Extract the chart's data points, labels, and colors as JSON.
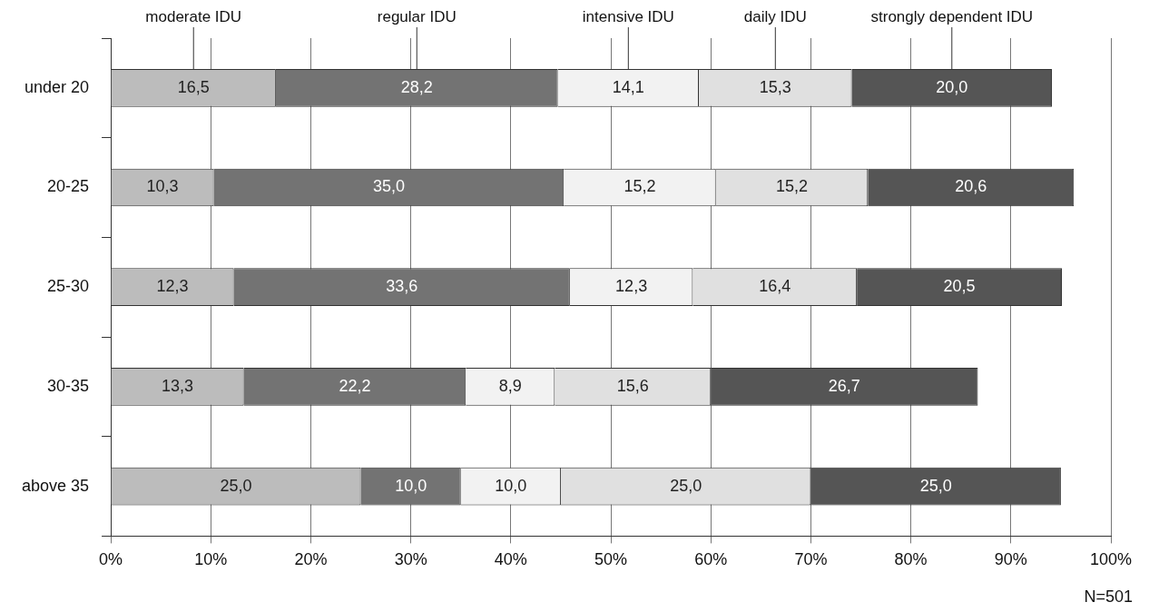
{
  "chart_data": {
    "type": "bar",
    "orientation": "horizontal",
    "stacked": true,
    "categories": [
      "under 20",
      "20-25",
      "25-30",
      "30-35",
      "above 35"
    ],
    "series": [
      {
        "name": "moderate IDU",
        "color": "#bcbcbc",
        "values": [
          16.5,
          10.3,
          12.3,
          13.3,
          25.0
        ],
        "value_labels": [
          "16,5",
          "10,3",
          "12,3",
          "13,3",
          "25,0"
        ]
      },
      {
        "name": "regular IDU",
        "color": "#737373",
        "values": [
          28.2,
          35.0,
          33.6,
          22.2,
          10.0
        ],
        "value_labels": [
          "28,2",
          "35,0",
          "33,6",
          "22,2",
          "10,0"
        ]
      },
      {
        "name": "intensive IDU",
        "color": "#f2f2f2",
        "values": [
          14.1,
          15.2,
          12.3,
          8.9,
          10.0
        ],
        "value_labels": [
          "14,1",
          "15,2",
          "12,3",
          "8,9",
          "10,0"
        ]
      },
      {
        "name": "daily IDU",
        "color": "#e0e0e0",
        "values": [
          15.3,
          15.2,
          16.4,
          15.6,
          25.0
        ],
        "value_labels": [
          "15,3",
          "15,2",
          "16,4",
          "15,6",
          "25,0"
        ]
      },
      {
        "name": "strongly dependent IDU",
        "color": "#555555",
        "values": [
          20.0,
          20.6,
          20.5,
          26.7,
          25.0
        ],
        "value_labels": [
          "20,0",
          "20,6",
          "20,5",
          "26,7",
          "25,0"
        ]
      }
    ],
    "xlim": [
      0,
      100
    ],
    "xticks": [
      {
        "value": 0,
        "label": "0%"
      },
      {
        "value": 10,
        "label": "10%"
      },
      {
        "value": 20,
        "label": "20%"
      },
      {
        "value": 30,
        "label": "30%"
      },
      {
        "value": 40,
        "label": "40%"
      },
      {
        "value": 50,
        "label": "50%"
      },
      {
        "value": 60,
        "label": "60%"
      },
      {
        "value": 70,
        "label": "70%"
      },
      {
        "value": 80,
        "label": "80%"
      },
      {
        "value": 90,
        "label": "90%"
      },
      {
        "value": 100,
        "label": "100%"
      }
    ],
    "grid": "x",
    "annotations": [
      "N=501"
    ]
  }
}
